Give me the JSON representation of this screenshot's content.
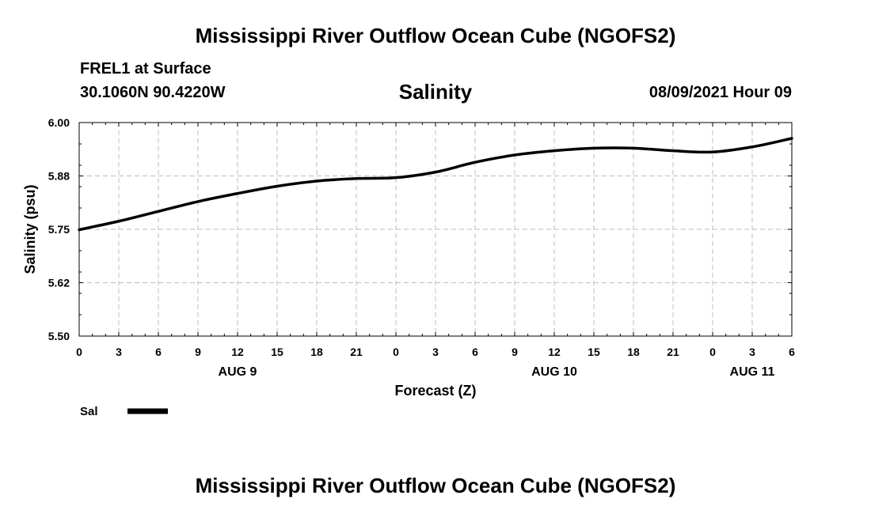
{
  "header": {
    "title": "Mississippi River Outflow Ocean Cube (NGOFS2)",
    "station": "FREL1 at Surface",
    "coords": "30.1060N  90.4220W",
    "variable": "Salinity",
    "datetime": "08/09/2021 Hour 09"
  },
  "footer": {
    "title": "Mississippi River Outflow Ocean Cube (NGOFS2)"
  },
  "chart_data": {
    "type": "line",
    "title": "Salinity",
    "xlabel": "Forecast (Z)",
    "ylabel": "Salinity (psu)",
    "xlim": [
      0,
      54
    ],
    "ylim": [
      5.5,
      6.0
    ],
    "yticks": [
      "6.00",
      "5.88",
      "5.75",
      "5.62",
      "5.50"
    ],
    "ytick_values": [
      6.0,
      5.875,
      5.75,
      5.625,
      5.5
    ],
    "xtick_labels": [
      "0",
      "3",
      "6",
      "9",
      "12",
      "15",
      "18",
      "21",
      "0",
      "3",
      "6",
      "9",
      "12",
      "15",
      "18",
      "21",
      "0",
      "3",
      "6"
    ],
    "date_labels": [
      {
        "label": "AUG 9",
        "hour": 12
      },
      {
        "label": "AUG 10",
        "hour": 36
      },
      {
        "label": "AUG 11",
        "hour": 51
      }
    ],
    "grid": true,
    "legend": "bottom-left",
    "series": [
      {
        "name": "Sal",
        "color": "#000000",
        "x": [
          0,
          3,
          6,
          9,
          12,
          15,
          18,
          21,
          24,
          27,
          30,
          33,
          36,
          39,
          42,
          45,
          48,
          51,
          54
        ],
        "values": [
          5.749,
          5.769,
          5.792,
          5.815,
          5.834,
          5.851,
          5.863,
          5.869,
          5.871,
          5.884,
          5.907,
          5.924,
          5.934,
          5.94,
          5.94,
          5.934,
          5.931,
          5.943,
          5.963
        ]
      }
    ]
  }
}
